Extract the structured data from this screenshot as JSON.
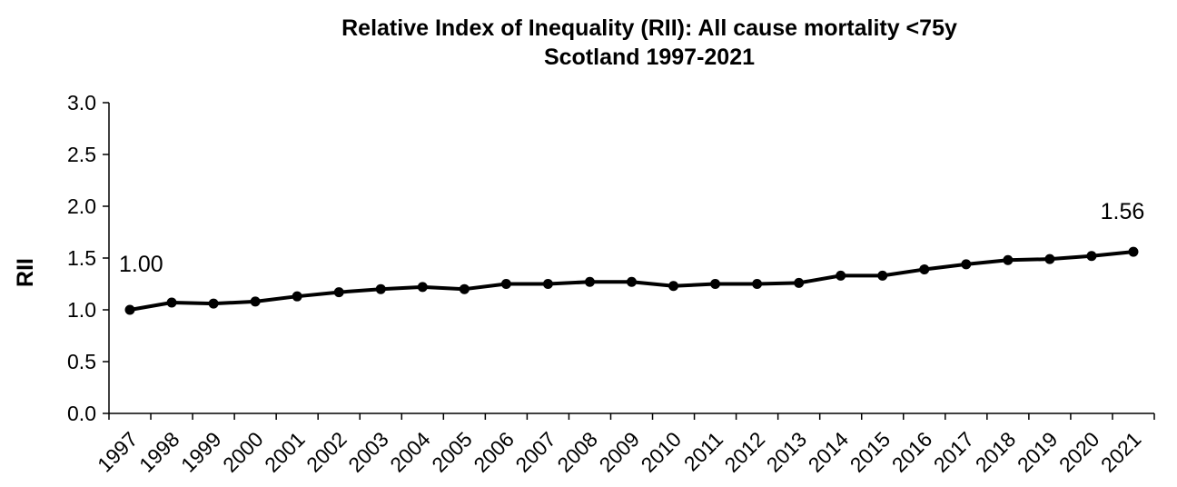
{
  "chart_data": {
    "type": "line",
    "title": "Relative Index of Inequality (RII): All cause mortality <75y",
    "subtitle": "Scotland 1997-2021",
    "xlabel": "",
    "ylabel": "RII",
    "ylim": [
      0,
      3.0
    ],
    "yticks": [
      "0.0",
      "0.5",
      "1.0",
      "1.5",
      "2.0",
      "2.5",
      "3.0"
    ],
    "categories": [
      "1997",
      "1998",
      "1999",
      "2000",
      "2001",
      "2002",
      "2003",
      "2004",
      "2005",
      "2006",
      "2007",
      "2008",
      "2009",
      "2010",
      "2011",
      "2012",
      "2013",
      "2014",
      "2015",
      "2016",
      "2017",
      "2018",
      "2019",
      "2020",
      "2021"
    ],
    "series": [
      {
        "values": [
          1.0,
          1.07,
          1.06,
          1.08,
          1.13,
          1.17,
          1.2,
          1.22,
          1.2,
          1.25,
          1.25,
          1.27,
          1.27,
          1.23,
          1.25,
          1.25,
          1.26,
          1.33,
          1.33,
          1.39,
          1.44,
          1.48,
          1.49,
          1.52,
          1.56
        ],
        "color": "#000000"
      }
    ],
    "data_labels": [
      {
        "category": "1997",
        "text": "1.00"
      },
      {
        "category": "2021",
        "text": "1.56"
      }
    ],
    "grid": false,
    "legend": "none"
  }
}
